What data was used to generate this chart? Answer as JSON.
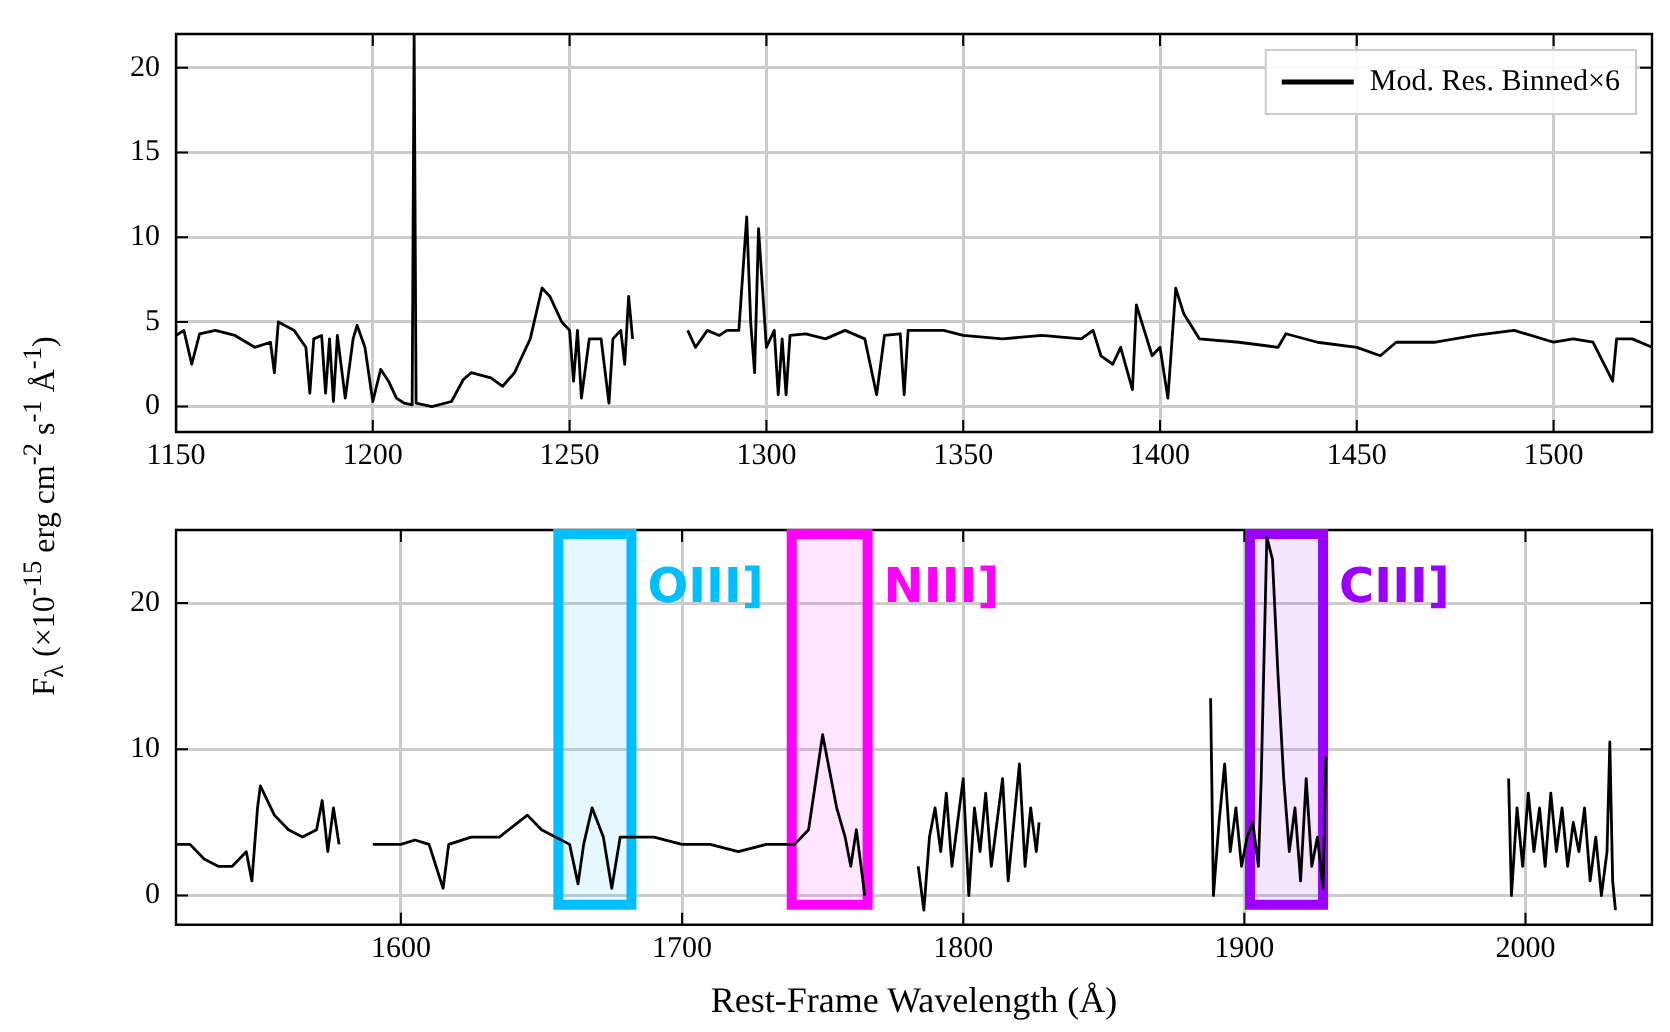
{
  "chart_data": [
    {
      "type": "line",
      "x": [
        1150,
        1152,
        1154,
        1156,
        1160,
        1165,
        1170,
        1174,
        1175,
        1176,
        1180,
        1183,
        1184,
        1185,
        1187,
        1188,
        1189,
        1190,
        1191,
        1193,
        1195,
        1196,
        1198,
        1200,
        1202,
        1204,
        1206,
        1208,
        1210,
        1210.5,
        1211,
        1215,
        1220,
        1223,
        1225,
        1230,
        1233,
        1236,
        1240,
        1243,
        1245,
        1248,
        1250,
        1251,
        1252,
        1253,
        1255,
        1258,
        1260,
        1261,
        1263,
        1264,
        1265,
        1266,
        1272,
        1280,
        1282,
        1285,
        1288,
        1290,
        1293,
        1295,
        1296,
        1297,
        1298,
        1300,
        1302,
        1303,
        1304,
        1305,
        1306,
        1310,
        1315,
        1320,
        1325,
        1328,
        1330,
        1334,
        1335,
        1336,
        1340,
        1345,
        1350,
        1360,
        1370,
        1380,
        1383,
        1385,
        1388,
        1390,
        1393,
        1394,
        1396,
        1398,
        1400,
        1402,
        1404,
        1406,
        1410,
        1420,
        1430,
        1432,
        1440,
        1450,
        1456,
        1460,
        1470,
        1480,
        1490,
        1500,
        1505,
        1510,
        1515,
        1516,
        1520,
        1525
      ],
      "series": [
        {
          "name": "Mod. Res. Binned×6",
          "color": "#000000",
          "values": [
            4.2,
            4.5,
            2.5,
            4.3,
            4.5,
            4.2,
            3.5,
            3.8,
            2.0,
            5.0,
            4.5,
            3.5,
            0.8,
            4.0,
            4.2,
            0.8,
            4.0,
            0.3,
            4.2,
            0.5,
            4.0,
            4.8,
            3.5,
            0.3,
            2.2,
            1.5,
            0.5,
            0.2,
            0.1,
            22,
            0.2,
            0.0,
            0.3,
            1.6,
            2.0,
            1.7,
            1.2,
            2.0,
            4.0,
            7.0,
            6.5,
            5.0,
            4.5,
            1.5,
            4.5,
            0.5,
            4.0,
            4.0,
            0.2,
            4.0,
            4.5,
            2.5,
            6.5,
            4.0,
            null,
            4.5,
            3.5,
            4.5,
            4.2,
            4.5,
            4.5,
            11.2,
            5.0,
            2.0,
            10.5,
            3.5,
            4.5,
            0.7,
            4.0,
            0.7,
            4.2,
            4.3,
            4.0,
            4.5,
            4.0,
            0.7,
            4.2,
            4.3,
            0.7,
            4.5,
            4.5,
            4.5,
            4.2,
            4.0,
            4.2,
            4.0,
            4.5,
            3.0,
            2.5,
            3.5,
            1.0,
            6.0,
            4.5,
            3.0,
            3.5,
            0.5,
            7.0,
            5.5,
            4.0,
            3.8,
            3.5,
            4.3,
            3.8,
            3.5,
            3.0,
            3.8,
            3.8,
            4.2,
            4.5,
            3.8,
            4.0,
            3.8,
            1.5,
            4.0,
            4.0,
            3.5
          ]
        }
      ],
      "xlim": [
        1150,
        1525
      ],
      "ylim": [
        -1.5,
        22
      ],
      "xticks": [
        1150,
        1200,
        1250,
        1300,
        1350,
        1400,
        1450,
        1500
      ],
      "yticks": [
        0,
        5,
        10,
        15,
        20
      ],
      "grid": true,
      "legend": "top right"
    },
    {
      "type": "line",
      "x": [
        1520,
        1525,
        1530,
        1535,
        1540,
        1545,
        1547,
        1549,
        1550,
        1555,
        1560,
        1565,
        1570,
        1572,
        1574,
        1576,
        1578,
        1583,
        1590,
        1600,
        1605,
        1610,
        1615,
        1617,
        1625,
        1635,
        1645,
        1650,
        1660,
        1663,
        1665,
        1668,
        1672,
        1675,
        1678,
        1690,
        1700,
        1710,
        1720,
        1730,
        1740,
        1745,
        1750,
        1752,
        1755,
        1758,
        1760,
        1762,
        1765,
        1775,
        1784,
        1786,
        1788,
        1790,
        1792,
        1794,
        1796,
        1798,
        1800,
        1802,
        1804,
        1806,
        1808,
        1810,
        1812,
        1814,
        1816,
        1818,
        1820,
        1822,
        1824,
        1826,
        1827,
        1850,
        1888,
        1889,
        1891,
        1893,
        1895,
        1897,
        1899,
        1901,
        1903,
        1905,
        1906,
        1908,
        1910,
        1912,
        1914,
        1916,
        1918,
        1920,
        1922,
        1924,
        1926,
        1928,
        1929,
        1960,
        1994,
        1995,
        1997,
        1999,
        2001,
        2003,
        2005,
        2007,
        2009,
        2011,
        2013,
        2015,
        2017,
        2019,
        2021,
        2023,
        2025,
        2027,
        2029,
        2030,
        2031,
        2032
      ],
      "series": [
        {
          "color": "#000000",
          "values": [
            3.5,
            3.5,
            2.5,
            2.0,
            2.0,
            3.0,
            1.0,
            6.0,
            7.5,
            5.5,
            4.5,
            4.0,
            4.5,
            6.5,
            3.0,
            6.0,
            3.5,
            null,
            3.5,
            3.5,
            3.8,
            3.5,
            0.5,
            3.5,
            4.0,
            4.0,
            5.5,
            4.5,
            3.5,
            0.8,
            3.5,
            6.0,
            4.0,
            0.5,
            4.0,
            4.0,
            3.5,
            3.5,
            3.0,
            3.5,
            3.5,
            4.5,
            11.0,
            9.0,
            6.0,
            4.0,
            2.0,
            4.5,
            0.0,
            null,
            2,
            -1,
            4,
            6,
            3,
            7,
            2,
            5,
            8,
            0,
            6,
            3,
            7,
            2,
            5,
            8,
            1,
            5,
            9,
            2,
            6,
            3,
            5,
            null,
            13.5,
            0,
            5,
            9,
            3,
            6,
            2,
            4,
            5,
            2,
            8,
            24.5,
            23,
            15,
            8,
            3,
            6,
            1,
            8,
            2,
            4,
            0.5,
            9.5,
            null,
            8,
            0,
            6,
            2,
            7,
            3,
            6,
            2,
            7,
            3,
            6,
            2,
            5,
            3,
            6,
            1,
            4,
            0,
            3,
            10.5,
            1,
            -1
          ]
        }
      ],
      "xlim": [
        1520,
        2045
      ],
      "ylim": [
        -2,
        25
      ],
      "xticks": [
        1600,
        1700,
        1800,
        1900,
        2000
      ],
      "yticks": [
        0,
        10,
        20
      ],
      "grid": true,
      "xlabel": "Rest-Frame Wavelength (Å)",
      "ylabel": "F$_{λ}$ (×10$^{-15}$ erg cm$^{-2}$ s$^{-1}$ Å$^{-1}$)",
      "bands": [
        {
          "axis": "x",
          "from": 1656,
          "to": 1682,
          "label": "OIII]",
          "color": "#00bfff"
        },
        {
          "axis": "x",
          "from": 1739,
          "to": 1766,
          "label": "NIII]",
          "color": "#ff00ff"
        },
        {
          "axis": "x",
          "from": 1902,
          "to": 1928,
          "label": "CIII]",
          "color": "#9b00ff"
        }
      ]
    }
  ]
}
